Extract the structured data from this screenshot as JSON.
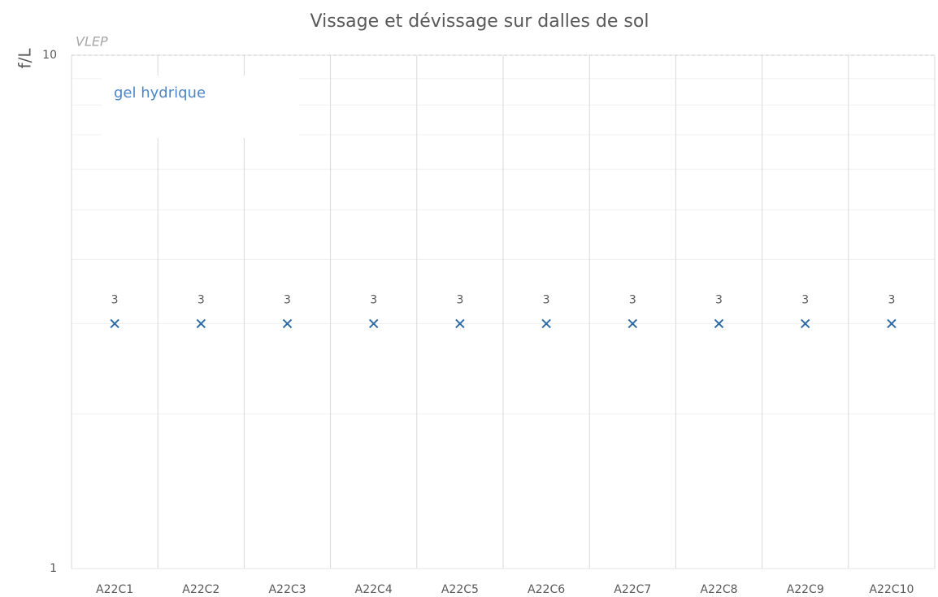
{
  "chart_data": {
    "type": "scatter",
    "title": "Vissage et dévissage sur dalles de sol",
    "y_label": "f/L",
    "categories": [
      "A22C1",
      "A22C2",
      "A22C3",
      "A22C4",
      "A22C5",
      "A22C6",
      "A22C7",
      "A22C8",
      "A22C9",
      "A22C10"
    ],
    "values": [
      3,
      3,
      3,
      3,
      3,
      3,
      3,
      3,
      3,
      3
    ],
    "color": "#2e6aa6",
    "marker": "x",
    "ylim": [
      1,
      10
    ],
    "yticks": [
      1,
      10
    ],
    "log_y": true,
    "grid": true,
    "minor_grid": true,
    "reference_lines": [
      {
        "value": 10,
        "label": "VLEP"
      }
    ],
    "annotations": [
      "gel hydrique"
    ]
  }
}
